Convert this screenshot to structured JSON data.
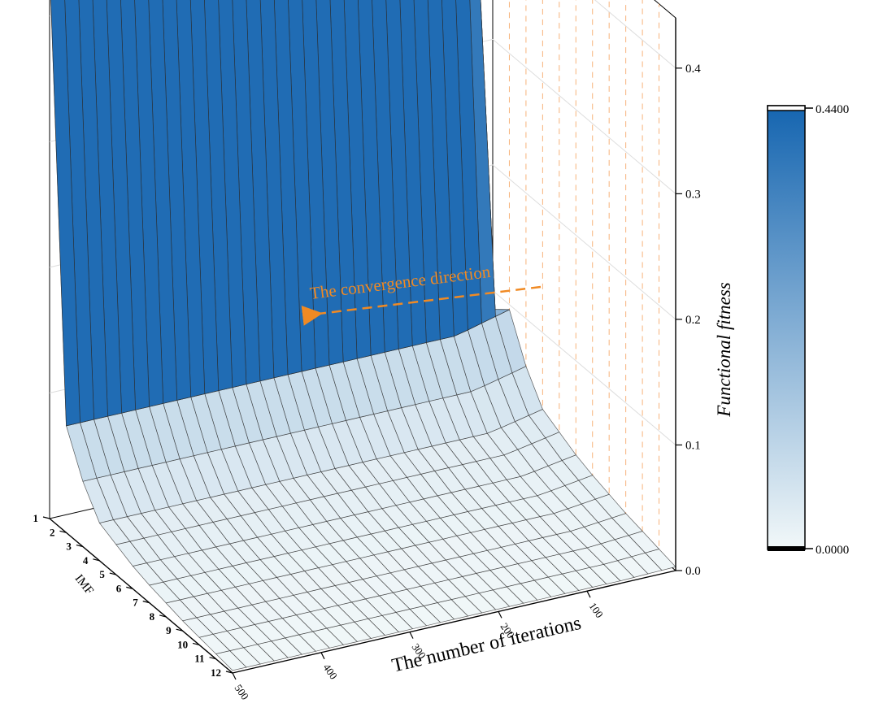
{
  "chart_data": {
    "type": "surface3d",
    "xlabel": "The number of iterations",
    "ylabel": "IMF",
    "zlabel": "Functional fitness",
    "annotation": "The convergence direction",
    "x_ticks": [
      "100",
      "200",
      "300",
      "400",
      "500"
    ],
    "y_ticks": [
      "1",
      "2",
      "3",
      "4",
      "5",
      "6",
      "7",
      "8",
      "9",
      "10",
      "11",
      "12"
    ],
    "z_ticks": [
      "0.0",
      "0.1",
      "0.2",
      "0.3",
      "0.4"
    ],
    "xlim": [
      0,
      500
    ],
    "ylim": [
      1,
      12
    ],
    "zlim": [
      0,
      0.44
    ],
    "colorbar": {
      "min_label": "0.0000",
      "max_label": "0.4400",
      "min": 0,
      "max": 0.44,
      "low_color": "#f2f8f9",
      "high_color": "#1565b0"
    },
    "grid": true,
    "surface_levels": [
      0.44,
      0.085,
      0.052,
      0.03,
      0.024,
      0.018,
      0.014,
      0.011,
      0.008,
      0.006,
      0.004,
      0.002
    ],
    "back_row_drop_x": 20,
    "annotation_color": "#f08a24"
  }
}
